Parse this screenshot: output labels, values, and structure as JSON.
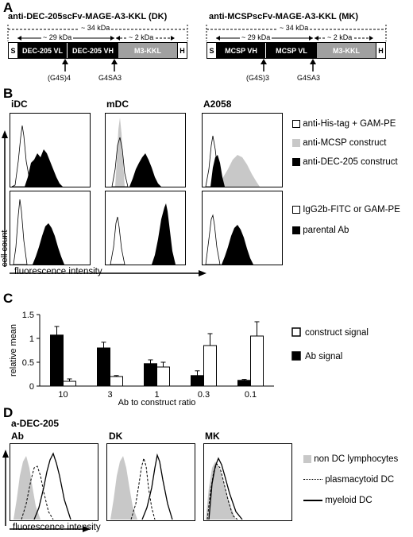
{
  "panels": {
    "a": "A",
    "b": "B",
    "c": "C",
    "d": "D"
  },
  "panel_a": {
    "left": {
      "title": "anti-DEC-205scFv-MAGE-A3-KKL (DK)",
      "total_kda": "~ 34 kDa",
      "scfv_kda": "~ 29 kDa",
      "tag_kda": "~ 2 kDa",
      "segments": [
        "S",
        "DEC-205 VL",
        "DEC-205 VH",
        "M3-KKL",
        "H"
      ],
      "linker1": "(G4S)4",
      "linker2": "G4SA3"
    },
    "right": {
      "title": "anti-MCSPscFv-MAGE-A3-KKL (MK)",
      "total_kda": "~ 34 kDa",
      "scfv_kda": "~ 29 kDa",
      "tag_kda": "~ 2 kDa",
      "segments": [
        "S",
        "MCSP VH",
        "MCSP VL",
        "M3-KKL",
        "H"
      ],
      "linker1": "(G4S)3",
      "linker2": "G4SA3"
    }
  },
  "panel_b": {
    "columns": [
      "iDC",
      "mDC",
      "A2058"
    ],
    "y_label": "cell count",
    "x_label": "fluorescence intensity",
    "legend_top": [
      "anti-His-tag + GAM-PE",
      "anti-MCSP construct",
      "anti-DEC-205 construct"
    ],
    "legend_bottom": [
      "IgG2b-FITC or GAM-PE",
      "parental Ab"
    ]
  },
  "panel_d": {
    "title": "a-DEC-205",
    "columns": [
      "Ab",
      "DK",
      "MK"
    ],
    "x_label": "fluorescence intensity",
    "legend": [
      "non DC lymphocytes",
      "plasmacytoid DC",
      "myeloid DC"
    ]
  },
  "colors": {
    "black": "#000000",
    "gray": "#c8c8c8",
    "segment_gray": "#a0a0a0"
  },
  "chart_data": {
    "type": "bar",
    "categories": [
      "10",
      "3",
      "1",
      "0.3",
      "0.1"
    ],
    "series": [
      {
        "name": "construct signal",
        "values": [
          0.1,
          0.2,
          0.4,
          0.85,
          1.05
        ],
        "errors": [
          0.05,
          0.02,
          0.1,
          0.25,
          0.3
        ],
        "color": "#ffffff"
      },
      {
        "name": "Ab signal",
        "values": [
          1.07,
          0.8,
          0.47,
          0.22,
          0.12
        ],
        "errors": [
          0.18,
          0.12,
          0.08,
          0.1,
          0.02
        ],
        "color": "#000000"
      }
    ],
    "xlabel": "Ab to construct ratio",
    "ylabel": "relative mean",
    "ylim": [
      0,
      1.5
    ],
    "yticks": [
      "0",
      "0.5",
      "1",
      "1.5"
    ],
    "legend": [
      "construct signal",
      "Ab signal"
    ]
  }
}
